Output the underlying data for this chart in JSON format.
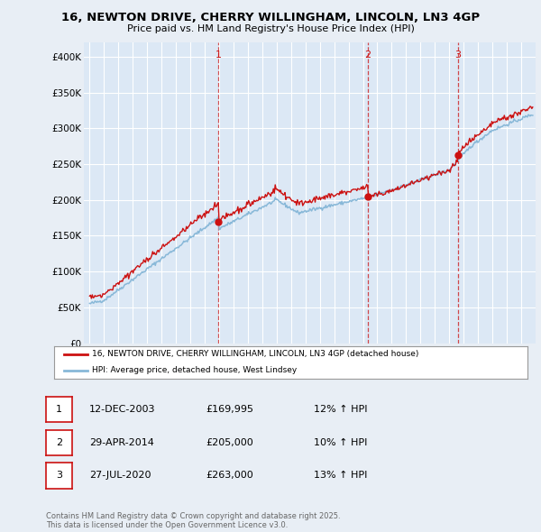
{
  "title1": "16, NEWTON DRIVE, CHERRY WILLINGHAM, LINCOLN, LN3 4GP",
  "title2": "Price paid vs. HM Land Registry's House Price Index (HPI)",
  "ylim": [
    0,
    420000
  ],
  "yticks": [
    0,
    50000,
    100000,
    150000,
    200000,
    250000,
    300000,
    350000,
    400000
  ],
  "ytick_labels": [
    "£0",
    "£50K",
    "£100K",
    "£150K",
    "£200K",
    "£250K",
    "£300K",
    "£350K",
    "£400K"
  ],
  "background_color": "#e8eef5",
  "plot_bg": "#dce8f5",
  "red_color": "#cc1111",
  "blue_color": "#88b8d8",
  "sale1_date": 2003.95,
  "sale1_price": 169995,
  "sale2_date": 2014.33,
  "sale2_price": 205000,
  "sale3_date": 2020.58,
  "sale3_price": 263000,
  "legend_line1": "16, NEWTON DRIVE, CHERRY WILLINGHAM, LINCOLN, LN3 4GP (detached house)",
  "legend_line2": "HPI: Average price, detached house, West Lindsey",
  "table_rows": [
    {
      "num": "1",
      "date": "12-DEC-2003",
      "price": "£169,995",
      "hpi": "12% ↑ HPI"
    },
    {
      "num": "2",
      "date": "29-APR-2014",
      "price": "£205,000",
      "hpi": "10% ↑ HPI"
    },
    {
      "num": "3",
      "date": "27-JUL-2020",
      "price": "£263,000",
      "hpi": "13% ↑ HPI"
    }
  ],
  "footer": "Contains HM Land Registry data © Crown copyright and database right 2025.\nThis data is licensed under the Open Government Licence v3.0."
}
